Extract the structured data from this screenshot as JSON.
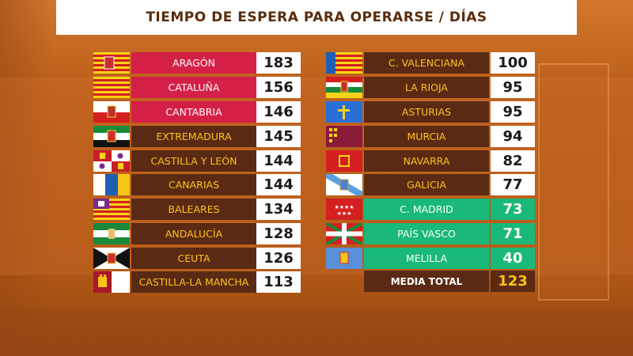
{
  "title": "TIEMPO DE ESPERA PARA OPERARSE / DÍAS",
  "left": [
    {
      "name": "ARAGÓN",
      "value": "183",
      "theme": "red",
      "flag": "aragon-flag-icon"
    },
    {
      "name": "CATALUÑA",
      "value": "156",
      "theme": "red",
      "flag": "cataluna-flag-icon"
    },
    {
      "name": "CANTABRIA",
      "value": "146",
      "theme": "red",
      "flag": "cantabria-flag-icon"
    },
    {
      "name": "EXTREMADURA",
      "value": "145",
      "theme": "brown",
      "flag": "extremadura-flag-icon"
    },
    {
      "name": "CASTILLA Y LEÓN",
      "value": "144",
      "theme": "brown",
      "flag": "castilla-y-leon-flag-icon"
    },
    {
      "name": "CANARIAS",
      "value": "144",
      "theme": "brown",
      "flag": "canarias-flag-icon"
    },
    {
      "name": "BALEARES",
      "value": "134",
      "theme": "brown",
      "flag": "baleares-flag-icon"
    },
    {
      "name": "ANDALUCÍA",
      "value": "128",
      "theme": "brown",
      "flag": "andalucia-flag-icon"
    },
    {
      "name": "CEUTA",
      "value": "126",
      "theme": "brown",
      "flag": "ceuta-flag-icon"
    },
    {
      "name": "CASTILLA-LA MANCHA",
      "value": "113",
      "theme": "brown",
      "flag": "castilla-la-mancha-flag-icon"
    }
  ],
  "right": [
    {
      "name": "C. VALENCIANA",
      "value": "100",
      "theme": "brown",
      "flag": "valencia-flag-icon"
    },
    {
      "name": "LA RIOJA",
      "value": "95",
      "theme": "brown",
      "flag": "la-rioja-flag-icon"
    },
    {
      "name": "ASTURIAS",
      "value": "95",
      "theme": "brown",
      "flag": "asturias-flag-icon"
    },
    {
      "name": "MURCIA",
      "value": "94",
      "theme": "brown",
      "flag": "murcia-flag-icon"
    },
    {
      "name": "NAVARRA",
      "value": "82",
      "theme": "brown",
      "flag": "navarra-flag-icon"
    },
    {
      "name": "GALICIA",
      "value": "77",
      "theme": "brown",
      "flag": "galicia-flag-icon"
    },
    {
      "name": "C. MADRID",
      "value": "73",
      "theme": "green",
      "flag": "madrid-flag-icon"
    },
    {
      "name": "PAÍS VASCO",
      "value": "71",
      "theme": "green",
      "flag": "pais-vasco-flag-icon"
    },
    {
      "name": "MELILLA",
      "value": "40",
      "theme": "green",
      "flag": "melilla-flag-icon"
    }
  ],
  "total": {
    "label": "MEDIA TOTAL",
    "value": "123"
  },
  "colors": {
    "red": "#d42046",
    "brown": "#5a2a14",
    "green": "#1ab879",
    "gold": "#ffc21a",
    "title": "#5a2c0c"
  }
}
